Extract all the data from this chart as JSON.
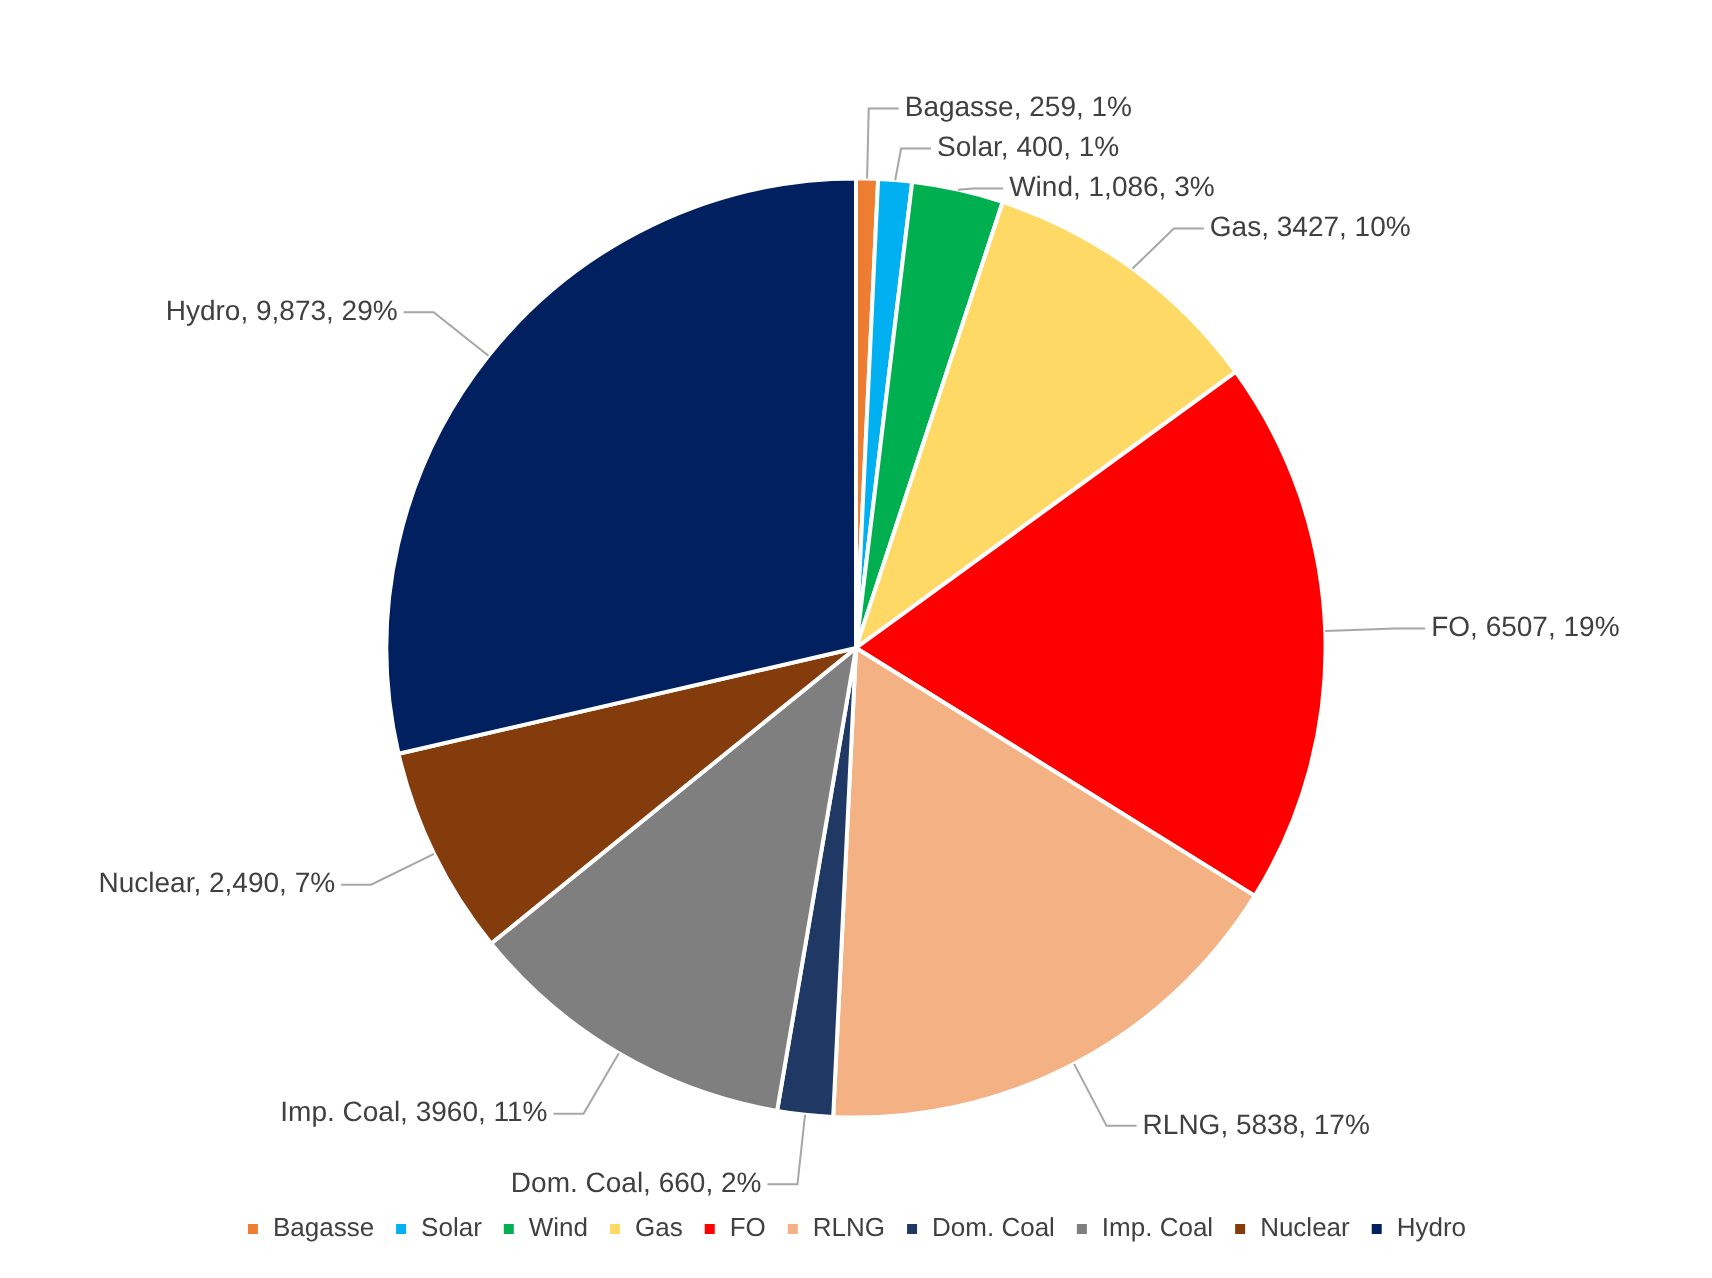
{
  "chart_data": {
    "type": "pie",
    "categories": [
      "Bagasse",
      "Solar",
      "Wind",
      "Gas",
      "FO",
      "RLNG",
      "Dom. Coal",
      "Imp. Coal",
      "Nuclear",
      "Hydro"
    ],
    "values": [
      259,
      400,
      1086,
      3427,
      6507,
      5838,
      660,
      3960,
      2490,
      9873
    ],
    "colors": [
      "#ed7d31",
      "#00b0f0",
      "#00b050",
      "#ffd966",
      "#ff0000",
      "#f4b183",
      "#203864",
      "#7f7f7f",
      "#843c0c",
      "#002060"
    ],
    "value_labels": [
      "Bagasse, 259, 1%",
      "Solar, 400, 1%",
      "Wind, 1,086, 3%",
      "Gas, 3427, 10%",
      "FO, 6507, 19%",
      "RLNG, 5838, 17%",
      "Dom. Coal, 660, 2%",
      "Imp. Coal, 3960, 11%",
      "Nuclear, 2,490, 7%",
      "Hydro, 9,873, 29%"
    ],
    "legend": "bottom"
  }
}
